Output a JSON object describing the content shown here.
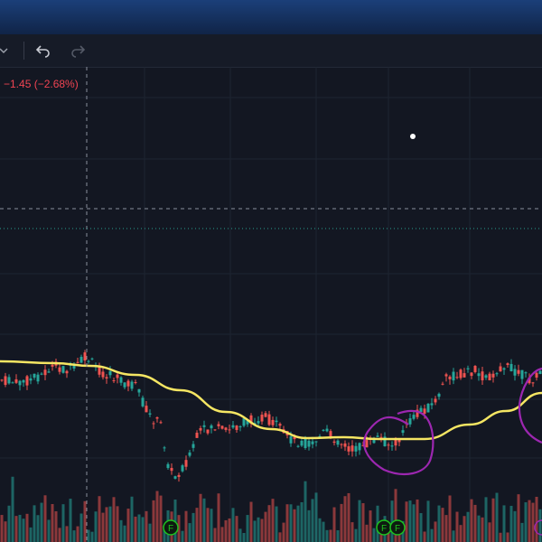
{
  "toolbar": {
    "dropdown_icon": "chevron-down-icon",
    "undo_icon": "undo-icon",
    "redo_icon": "redo-icon"
  },
  "legend": {
    "change_text": "−1.45 (−2.68%)"
  },
  "colors": {
    "background": "#131722",
    "up_candle": "#26a69a",
    "down_candle": "#ef5350",
    "moving_average": "#f5e663",
    "annotation": "#9c27b0",
    "earnings_marker": "#1ec31e",
    "crosshair": "#8a8f9c",
    "readout_negative": "#f04452"
  },
  "markers": {
    "earnings": [
      "F",
      "F",
      "F"
    ]
  },
  "chart_data": {
    "type": "candlestick",
    "moving_average": "yellow line",
    "earnings_markers": [
      "F",
      "F",
      "F"
    ],
    "annotations": [
      "purple hand-drawn circles"
    ]
  }
}
